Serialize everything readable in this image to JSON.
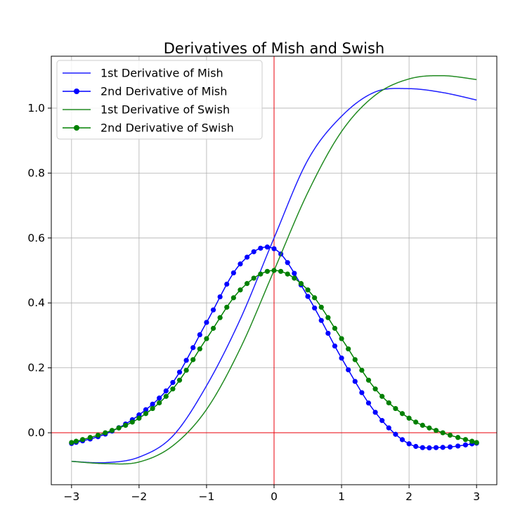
{
  "chart_data": {
    "type": "line",
    "title": "Derivatives of Mish and Swish",
    "xlabel": "",
    "ylabel": "",
    "xlim": [
      -3.3,
      3.3
    ],
    "ylim": [
      -0.16,
      1.16
    ],
    "xticks": [
      -3,
      -2,
      -1,
      0,
      1,
      2,
      3
    ],
    "xtick_labels": [
      "−3",
      "−2",
      "−1",
      "0",
      "1",
      "2",
      "3"
    ],
    "yticks": [
      0.0,
      0.2,
      0.4,
      0.6,
      0.8,
      1.0
    ],
    "ytick_labels": [
      "0.0",
      "0.2",
      "0.4",
      "0.6",
      "0.8",
      "1.0"
    ],
    "grid": true,
    "reference_lines": {
      "x": 0,
      "y": 0,
      "color": "#e8000b"
    },
    "legend_position": "top-left",
    "x": [
      -3.0,
      -2.5,
      -2.0,
      -1.5,
      -1.0,
      -0.5,
      0.0,
      0.5,
      1.0,
      1.5,
      2.0,
      2.5,
      3.0
    ],
    "series": [
      {
        "name": "1st Derivative of Mish",
        "color": "#1f1fff",
        "marker": "none",
        "values": [
          -0.088,
          -0.092,
          -0.075,
          -0.01,
          0.145,
          0.35,
          0.6,
          0.84,
          0.975,
          1.05,
          1.06,
          1.048,
          1.025
        ]
      },
      {
        "name": "2nd Derivative of Mish",
        "color": "#0000ff",
        "marker": "circle",
        "values": [
          -0.033,
          -0.004,
          0.055,
          0.155,
          0.34,
          0.52,
          0.567,
          0.42,
          0.23,
          0.063,
          -0.034,
          -0.045,
          -0.032
        ]
      },
      {
        "name": "1st Derivative of Swish",
        "color": "#228b22",
        "marker": "none",
        "values": [
          -0.088,
          -0.095,
          -0.09,
          -0.04,
          0.072,
          0.26,
          0.5,
          0.74,
          0.928,
          1.04,
          1.09,
          1.1,
          1.088
        ]
      },
      {
        "name": "2nd Derivative of Swish",
        "color": "#008000",
        "marker": "circle",
        "values": [
          -0.03,
          0.0,
          0.045,
          0.135,
          0.29,
          0.44,
          0.5,
          0.44,
          0.29,
          0.135,
          0.045,
          0.0,
          -0.03
        ]
      }
    ]
  }
}
